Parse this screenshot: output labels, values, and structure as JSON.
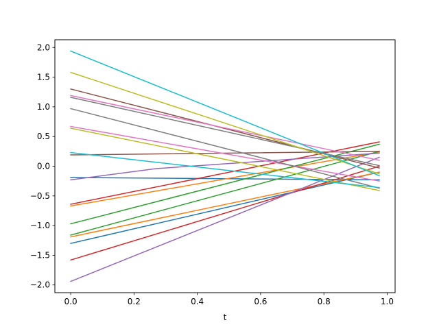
{
  "chart_data": {
    "type": "line",
    "xlabel": "t",
    "ylabel": "",
    "title": "",
    "xlim": [
      -0.05,
      1.025
    ],
    "ylim": [
      -2.13,
      2.13
    ],
    "xticks": [
      0.0,
      0.2,
      0.4,
      0.6,
      0.8,
      1.0
    ],
    "xtick_labels": [
      "0.0",
      "0.2",
      "0.4",
      "0.6",
      "0.8",
      "1.0"
    ],
    "yticks": [
      -2.0,
      -1.5,
      -1.0,
      -0.5,
      0.0,
      0.5,
      1.0,
      1.5,
      2.0
    ],
    "ytick_labels": [
      "−2.0",
      "−1.5",
      "−1.0",
      "−0.5",
      "0.0",
      "0.5",
      "1.0",
      "1.5",
      "2.0"
    ],
    "grid": false,
    "series": [
      {
        "color": "#1f77b4",
        "points": [
          [
            0,
            -0.19
          ],
          [
            0.975,
            -0.23
          ]
        ]
      },
      {
        "color": "#1f77b4",
        "points": [
          [
            0,
            -1.3
          ],
          [
            0.975,
            -0.1
          ]
        ]
      },
      {
        "color": "#ff7f0e",
        "points": [
          [
            0,
            -0.67
          ],
          [
            0.975,
            0.24
          ]
        ]
      },
      {
        "color": "#ff7f0e",
        "points": [
          [
            0,
            -1.19
          ],
          [
            0.975,
            -0.1
          ]
        ]
      },
      {
        "color": "#2ca02c",
        "points": [
          [
            0,
            -0.97
          ],
          [
            0.975,
            0.37
          ]
        ]
      },
      {
        "color": "#2ca02c",
        "points": [
          [
            0,
            -1.16
          ],
          [
            0.975,
            0.25
          ]
        ]
      },
      {
        "color": "#d62728",
        "points": [
          [
            0,
            -0.64
          ],
          [
            0.975,
            0.41
          ]
        ]
      },
      {
        "color": "#d62728",
        "points": [
          [
            0,
            -1.58
          ],
          [
            0.975,
            0.0
          ]
        ]
      },
      {
        "color": "#9467bd",
        "points": [
          [
            0,
            -0.23
          ],
          [
            0.27,
            -0.04
          ],
          [
            0.975,
            0.22
          ]
        ]
      },
      {
        "color": "#9467bd",
        "points": [
          [
            0,
            -1.94
          ],
          [
            0.975,
            0.15
          ]
        ]
      },
      {
        "color": "#8c564b",
        "points": [
          [
            0,
            0.19
          ],
          [
            0.975,
            0.25
          ]
        ]
      },
      {
        "color": "#8c564b",
        "points": [
          [
            0,
            1.3
          ],
          [
            0.975,
            -0.03
          ]
        ]
      },
      {
        "color": "#e377c2",
        "points": [
          [
            0,
            0.67
          ],
          [
            0.975,
            -0.25
          ]
        ]
      },
      {
        "color": "#e377c2",
        "points": [
          [
            0,
            1.19
          ],
          [
            0.975,
            0.1
          ]
        ]
      },
      {
        "color": "#7f7f7f",
        "points": [
          [
            0,
            0.97
          ],
          [
            0.975,
            -0.37
          ]
        ]
      },
      {
        "color": "#7f7f7f",
        "points": [
          [
            0,
            1.16
          ],
          [
            0.975,
            0.01
          ]
        ]
      },
      {
        "color": "#bcbd22",
        "points": [
          [
            0,
            0.64
          ],
          [
            0.975,
            -0.41
          ]
        ]
      },
      {
        "color": "#bcbd22",
        "points": [
          [
            0,
            1.58
          ],
          [
            0.975,
            -0.13
          ]
        ]
      },
      {
        "color": "#17becf",
        "points": [
          [
            0,
            0.23
          ],
          [
            0.975,
            -0.36
          ]
        ]
      },
      {
        "color": "#17becf",
        "points": [
          [
            0,
            1.94
          ],
          [
            0.975,
            -0.16
          ]
        ]
      }
    ]
  }
}
